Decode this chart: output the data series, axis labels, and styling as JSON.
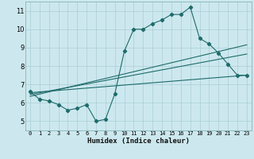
{
  "xlabel": "Humidex (Indice chaleur)",
  "bg_color": "#cce8ee",
  "grid_color": "#aacdd6",
  "line_color": "#1e6b6b",
  "xlim": [
    -0.5,
    23.5
  ],
  "ylim": [
    4.5,
    11.5
  ],
  "xticks": [
    0,
    1,
    2,
    3,
    4,
    5,
    6,
    7,
    8,
    9,
    10,
    11,
    12,
    13,
    14,
    15,
    16,
    17,
    18,
    19,
    20,
    21,
    22,
    23
  ],
  "yticks": [
    5,
    6,
    7,
    8,
    9,
    10,
    11
  ],
  "main_x": [
    0,
    1,
    2,
    3,
    4,
    5,
    6,
    7,
    8,
    9,
    10,
    11,
    12,
    13,
    14,
    15,
    16,
    17,
    18,
    19,
    20,
    21,
    22,
    23
  ],
  "main_y": [
    6.6,
    6.2,
    6.1,
    5.9,
    5.6,
    5.7,
    5.9,
    5.0,
    5.1,
    6.5,
    8.8,
    10.0,
    10.0,
    10.3,
    10.5,
    10.8,
    10.8,
    11.2,
    9.5,
    9.2,
    8.7,
    8.1,
    7.5,
    7.5
  ],
  "line1_x": [
    0,
    23
  ],
  "line1_y": [
    6.55,
    7.5
  ],
  "line2_x": [
    0,
    23
  ],
  "line2_y": [
    6.45,
    8.65
  ],
  "line3_x": [
    0,
    23
  ],
  "line3_y": [
    6.35,
    9.15
  ]
}
